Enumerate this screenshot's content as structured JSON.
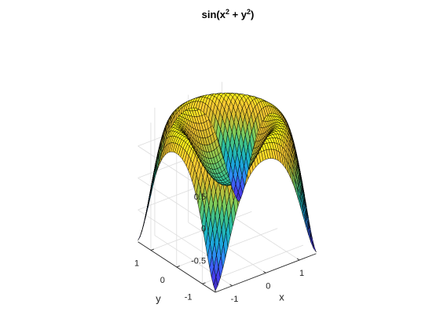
{
  "chart_data": {
    "type": "surface",
    "title": {
      "base": "sin(x",
      "sup1": "2",
      "mid": " + y",
      "sup2": "2",
      "end": ")"
    },
    "function": "sin(x^2 + y^2)",
    "xlabel": "x",
    "ylabel": "y",
    "zlabel": "",
    "xlim": [
      -1.5,
      1.5
    ],
    "ylim": [
      -1.5,
      1.5
    ],
    "zlim": [
      -1,
      1
    ],
    "xticks": [
      -1,
      0,
      1
    ],
    "yticks": [
      -1,
      0,
      1
    ],
    "zticks": [
      -0.5,
      0,
      0.5
    ],
    "xtick_labels": [
      "-1",
      "0",
      "1"
    ],
    "ytick_labels": [
      "-1",
      "0",
      "1"
    ],
    "ztick_labels": [
      "-0.5",
      "0",
      "0.5"
    ],
    "grid": true,
    "colormap": "parula",
    "colormap_stops": [
      "#3e26a8",
      "#4743f8",
      "#2d8cf2",
      "#17aed4",
      "#2ebf9a",
      "#81cc59",
      "#d1bb2e",
      "#fdca33",
      "#f9fb15"
    ],
    "mesh_samples_per_axis": 41,
    "view_azimuth_deg": -37.5,
    "view_elevation_deg": 30
  }
}
